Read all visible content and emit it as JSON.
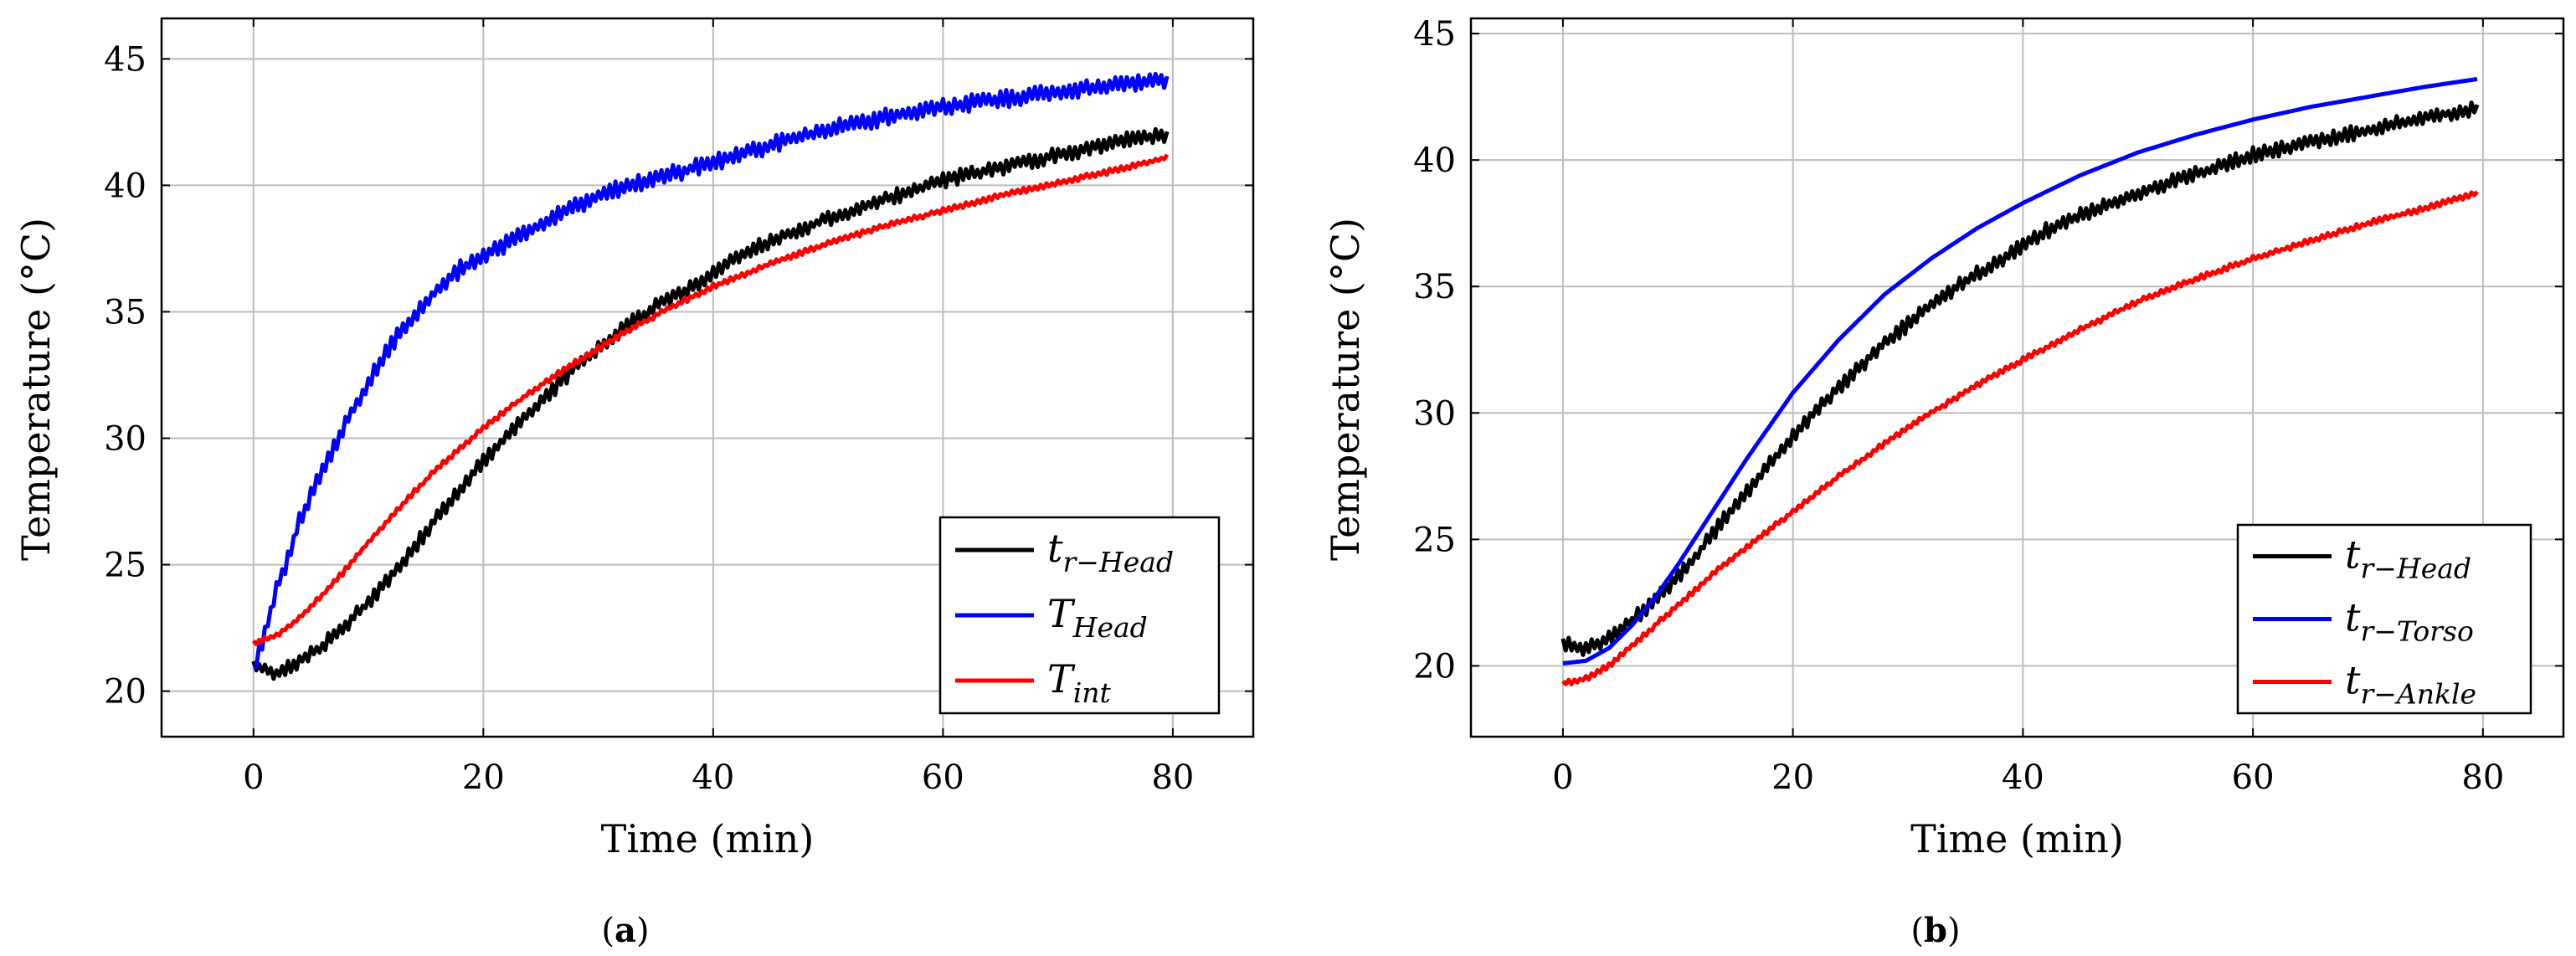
{
  "chart_data": [
    {
      "type": "line",
      "caption": {
        "open": "(",
        "letter": "a",
        "close": ")"
      },
      "xlabel": "Time (min)",
      "ylabel": "Temperature (°C)",
      "xlim": [
        -8,
        87
      ],
      "ylim": [
        18.2,
        46.6
      ],
      "xticks": [
        0,
        20,
        40,
        60,
        80
      ],
      "yticks": [
        20,
        25,
        30,
        35,
        40,
        45
      ],
      "grid": true,
      "legend_position": "bottom-right",
      "series": [
        {
          "name": "tr-Head",
          "legend": {
            "main": "t",
            "sub": "r−Head"
          },
          "color": "#000000",
          "noise": 0.22,
          "x": [
            0,
            2,
            4,
            6,
            8,
            10,
            12,
            14,
            16,
            18,
            20,
            22,
            24,
            26,
            28,
            30,
            32,
            34,
            36,
            38,
            40,
            42,
            44,
            46,
            48,
            50,
            52,
            54,
            56,
            58,
            60,
            62,
            64,
            66,
            68,
            70,
            72,
            74,
            76,
            78,
            79.5
          ],
          "y": [
            21.0,
            20.7,
            21.2,
            21.8,
            22.6,
            23.5,
            24.6,
            25.7,
            26.9,
            28.0,
            29.1,
            30.1,
            31.0,
            31.9,
            32.8,
            33.5,
            34.3,
            34.9,
            35.5,
            35.9,
            36.5,
            37.2,
            37.6,
            38.0,
            38.3,
            38.7,
            39.0,
            39.3,
            39.6,
            39.9,
            40.2,
            40.4,
            40.6,
            40.8,
            41.0,
            41.2,
            41.4,
            41.6,
            41.8,
            41.9,
            42.0
          ]
        },
        {
          "name": "THead",
          "legend": {
            "main": "T",
            "sub": "Head"
          },
          "color": "#0000ff",
          "noise": 0.25,
          "x": [
            0,
            1,
            2,
            3,
            4,
            6,
            8,
            10,
            12,
            14,
            16,
            18,
            20,
            24,
            28,
            32,
            36,
            40,
            45,
            50,
            55,
            60,
            65,
            70,
            75,
            79.5
          ],
          "y": [
            20.8,
            22.3,
            24.0,
            25.3,
            26.7,
            28.7,
            30.6,
            32.2,
            33.7,
            34.9,
            35.9,
            36.7,
            37.2,
            38.2,
            39.2,
            39.9,
            40.4,
            40.9,
            41.6,
            42.2,
            42.7,
            43.1,
            43.4,
            43.7,
            44.0,
            44.2
          ]
        },
        {
          "name": "Tint",
          "legend": {
            "main": "T",
            "sub": "int"
          },
          "color": "#ff0000",
          "noise": 0.08,
          "x": [
            0,
            2,
            4,
            6,
            8,
            10,
            12,
            14,
            16,
            18,
            20,
            24,
            28,
            32,
            36,
            40,
            45,
            50,
            55,
            60,
            65,
            70,
            75,
            79.5
          ],
          "y": [
            21.9,
            22.2,
            22.9,
            23.8,
            24.8,
            25.9,
            26.9,
            27.9,
            28.8,
            29.6,
            30.4,
            31.8,
            33.0,
            34.1,
            35.1,
            36.0,
            36.9,
            37.7,
            38.4,
            39.0,
            39.6,
            40.1,
            40.6,
            41.1
          ]
        }
      ]
    },
    {
      "type": "line",
      "caption": {
        "open": "(",
        "letter": "b",
        "close": ")"
      },
      "xlabel": "Time (min)",
      "ylabel": "Temperature (°C)",
      "xlim": [
        -8,
        87
      ],
      "ylim": [
        17.2,
        45.6
      ],
      "xticks": [
        0,
        20,
        40,
        60,
        80
      ],
      "yticks": [
        20,
        25,
        30,
        35,
        40,
        45
      ],
      "grid": true,
      "legend_position": "bottom-right",
      "series": [
        {
          "name": "tr-Head",
          "legend": {
            "main": "t",
            "sub": "r−Head"
          },
          "color": "#000000",
          "noise": 0.22,
          "x": [
            0,
            2,
            4,
            6,
            8,
            10,
            12,
            14,
            16,
            18,
            20,
            22,
            24,
            26,
            28,
            30,
            32,
            34,
            36,
            38,
            40,
            42,
            44,
            46,
            48,
            50,
            52,
            54,
            56,
            58,
            60,
            62,
            64,
            66,
            68,
            70,
            72,
            74,
            76,
            78,
            79.5
          ],
          "y": [
            20.9,
            20.7,
            21.1,
            21.8,
            22.6,
            23.5,
            24.6,
            25.8,
            26.9,
            28.0,
            29.1,
            30.1,
            31.0,
            31.9,
            32.8,
            33.5,
            34.3,
            34.9,
            35.5,
            36.0,
            36.6,
            37.2,
            37.6,
            38.0,
            38.3,
            38.7,
            39.0,
            39.3,
            39.6,
            39.9,
            40.2,
            40.4,
            40.6,
            40.8,
            41.0,
            41.2,
            41.4,
            41.6,
            41.8,
            41.9,
            42.0
          ]
        },
        {
          "name": "tr-Torso",
          "legend": {
            "main": "t",
            "sub": "r−Torso"
          },
          "color": "#0000ff",
          "noise": 0.0,
          "x": [
            0,
            2,
            4,
            6,
            8,
            10,
            12,
            14,
            16,
            18,
            20,
            24,
            28,
            32,
            36,
            40,
            45,
            50,
            55,
            60,
            65,
            70,
            75,
            79.5
          ],
          "y": [
            20.1,
            20.2,
            20.7,
            21.6,
            22.7,
            24.0,
            25.4,
            26.8,
            28.2,
            29.5,
            30.8,
            32.9,
            34.7,
            36.1,
            37.3,
            38.3,
            39.4,
            40.3,
            41.0,
            41.6,
            42.1,
            42.5,
            42.9,
            43.2
          ]
        },
        {
          "name": "tr-Ankle",
          "legend": {
            "main": "t",
            "sub": "r−Ankle"
          },
          "color": "#ff0000",
          "noise": 0.08,
          "x": [
            0,
            2,
            4,
            6,
            8,
            10,
            12,
            14,
            16,
            18,
            20,
            24,
            28,
            32,
            36,
            40,
            45,
            50,
            55,
            60,
            65,
            70,
            75,
            79.5
          ],
          "y": [
            19.3,
            19.5,
            20.0,
            20.8,
            21.6,
            22.4,
            23.2,
            24.0,
            24.7,
            25.4,
            26.1,
            27.5,
            28.8,
            30.0,
            31.1,
            32.1,
            33.3,
            34.4,
            35.3,
            36.1,
            36.8,
            37.5,
            38.1,
            38.7
          ]
        }
      ]
    }
  ]
}
